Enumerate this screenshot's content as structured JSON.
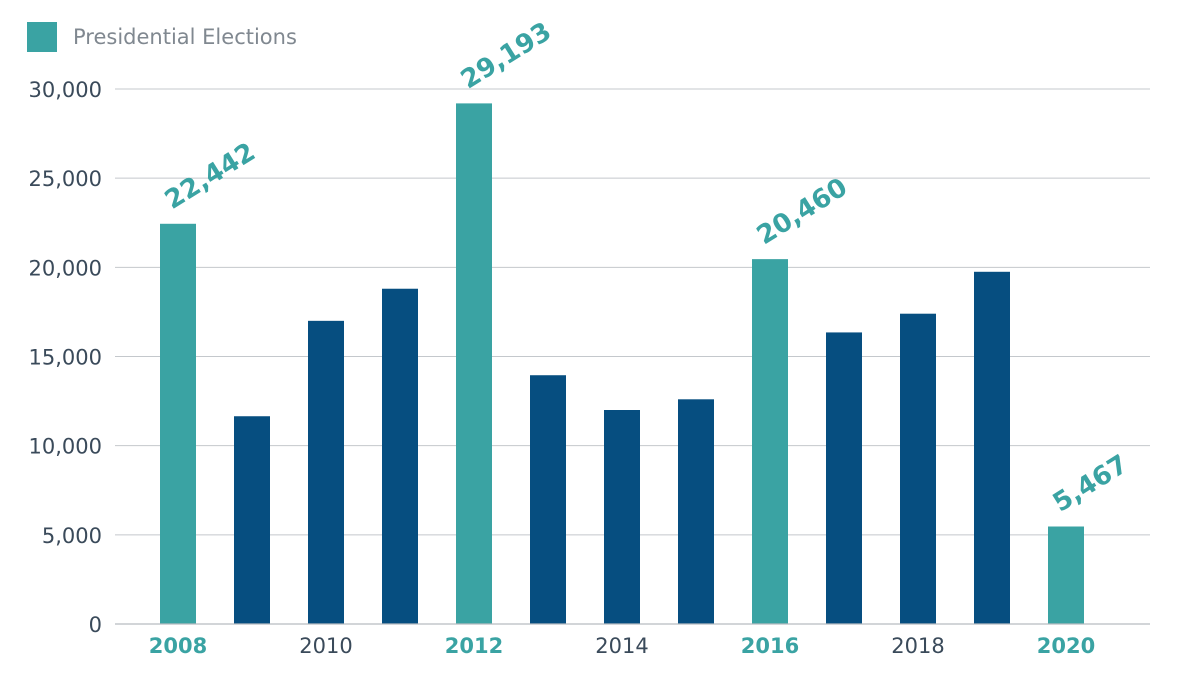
{
  "chart_data": {
    "type": "bar",
    "categories": [
      "2008",
      "2009",
      "2010",
      "2011",
      "2012",
      "2013",
      "2014",
      "2015",
      "2016",
      "2017",
      "2018",
      "2019",
      "2020"
    ],
    "values": [
      22442,
      11650,
      17000,
      18800,
      29193,
      13950,
      12000,
      12600,
      20460,
      16350,
      17400,
      19750,
      5467
    ],
    "highlighted": [
      true,
      false,
      false,
      false,
      true,
      false,
      false,
      false,
      true,
      false,
      false,
      false,
      true
    ],
    "x_tick_labels": [
      "2008",
      "",
      "2010",
      "",
      "2012",
      "",
      "2014",
      "",
      "2016",
      "",
      "2018",
      "",
      "2020"
    ],
    "data_labels": [
      "22,442",
      "",
      "",
      "",
      "29,193",
      "",
      "",
      "",
      "20,460",
      "",
      "",
      "",
      "5,467"
    ],
    "y_ticks": [
      0,
      5000,
      10000,
      15000,
      20000,
      25000,
      30000
    ],
    "y_tick_labels": [
      "0",
      "5,000",
      "10,000",
      "15,000",
      "20,000",
      "25,000",
      "30,000"
    ],
    "ylim": [
      0,
      30000
    ],
    "grid": true,
    "legend": {
      "placement": "top-left",
      "entries": [
        {
          "name": "Presidential Elections",
          "color": "#3aa3a3"
        }
      ]
    },
    "colors": {
      "highlight": "#3aa3a3",
      "default": "#064e80"
    }
  }
}
